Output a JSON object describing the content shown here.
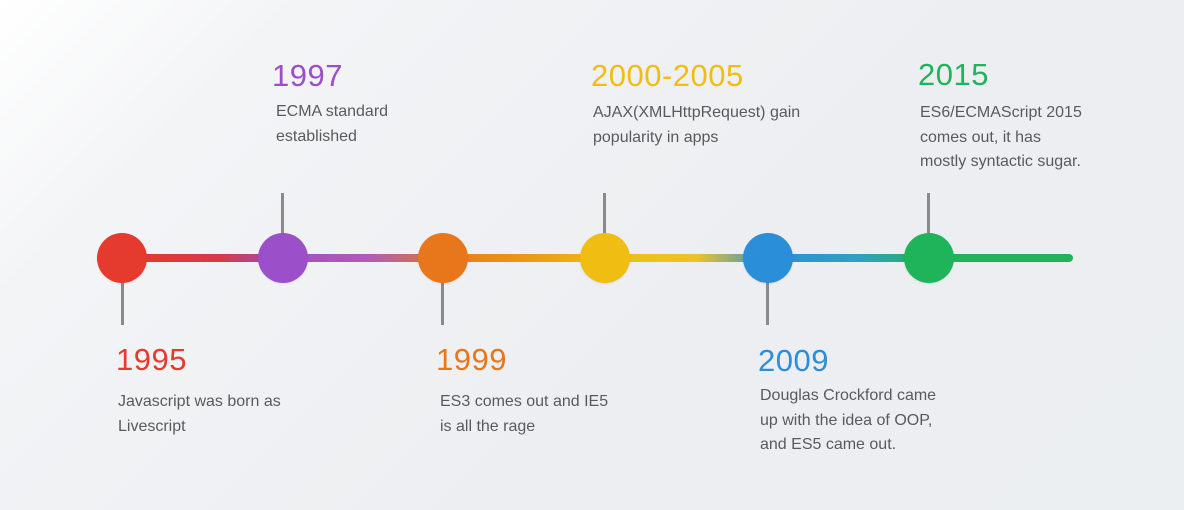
{
  "timeline": {
    "events": [
      {
        "id": "1995",
        "year": "1995",
        "color": "#e53a2e",
        "position": "below",
        "lines": [
          "Javascript was born as",
          "Livescript"
        ]
      },
      {
        "id": "1997",
        "year": "1997",
        "color": "#9b4fc8",
        "position": "above",
        "lines": [
          "ECMA standard",
          "established"
        ]
      },
      {
        "id": "1999",
        "year": "1999",
        "color": "#e8771c",
        "position": "below",
        "lines": [
          "ES3 comes out and IE5",
          "is all the rage"
        ]
      },
      {
        "id": "2000-2005",
        "year": "2000-2005",
        "color": "#f0bd12",
        "position": "above",
        "lines": [
          "AJAX(XMLHttpRequest) gain",
          "popularity in apps"
        ]
      },
      {
        "id": "2009",
        "year": "2009",
        "color": "#2a8fd8",
        "position": "below",
        "lines": [
          "Douglas Crockford came",
          "up with the idea of OOP,",
          "and ES5 came out."
        ]
      },
      {
        "id": "2015",
        "year": "2015",
        "color": "#1fb45a",
        "position": "above",
        "lines": [
          "ES6/ECMAScript 2015",
          "comes out, it has",
          "mostly syntactic sugar."
        ]
      }
    ]
  }
}
